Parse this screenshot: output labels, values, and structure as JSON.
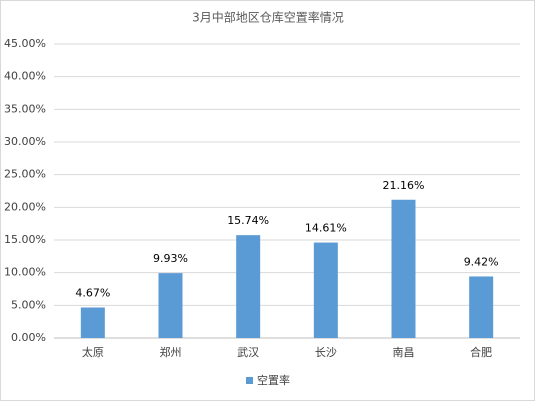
{
  "chart_data": {
    "type": "bar",
    "title": "3月中部地区仓库空置率情况",
    "categories": [
      "太原",
      "郑州",
      "武汉",
      "长沙",
      "南昌",
      "合肥"
    ],
    "series": [
      {
        "name": "空置率",
        "color": "#5b9bd5",
        "values": [
          4.67,
          9.93,
          15.74,
          14.61,
          21.16,
          9.42
        ],
        "value_labels": [
          "4.67%",
          "9.93%",
          "15.74%",
          "14.61%",
          "21.16%",
          "9.42%"
        ]
      }
    ],
    "ylim": [
      0,
      45
    ],
    "yticks": [
      {
        "value": 0,
        "label": "0.00%"
      },
      {
        "value": 5,
        "label": "5.00%"
      },
      {
        "value": 10,
        "label": "10.00%"
      },
      {
        "value": 15,
        "label": "15.00%"
      },
      {
        "value": 20,
        "label": "20.00%"
      },
      {
        "value": 25,
        "label": "25.00%"
      },
      {
        "value": 30,
        "label": "30.00%"
      },
      {
        "value": 35,
        "label": "35.00%"
      },
      {
        "value": 40,
        "label": "40.00%"
      },
      {
        "value": 45,
        "label": "45.00%"
      }
    ],
    "grid": true,
    "legend": "bottom"
  }
}
